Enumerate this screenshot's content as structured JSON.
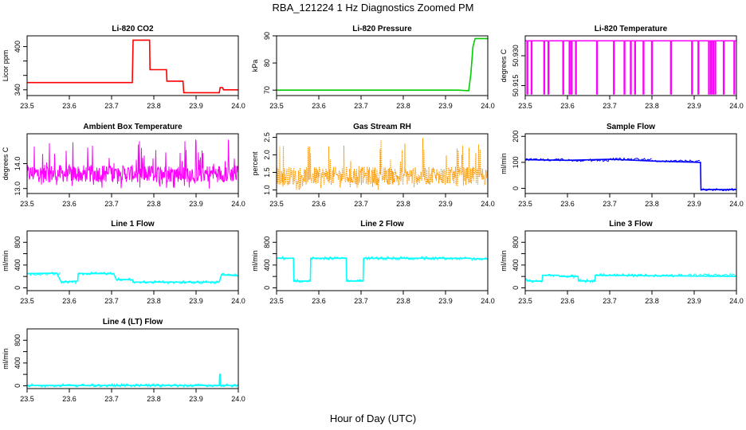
{
  "figure": {
    "title": "RBA_121224  1 Hz Diagnostics Zoomed PM",
    "xlabel": "Hour of Day (UTC)"
  },
  "chart_data": [
    {
      "type": "line",
      "title": "Li-820 CO2",
      "ylabel": "Licor ppm",
      "color": "#ff0000",
      "xlim": [
        23.5,
        24.0
      ],
      "ylim": [
        332,
        415
      ],
      "xticks": [
        "23.5",
        "23.6",
        "23.7",
        "23.8",
        "23.9",
        "24.0"
      ],
      "yticks": [
        340,
        360,
        380,
        400
      ],
      "yticklabels": [
        "340",
        "",
        "",
        "400"
      ],
      "series": [
        {
          "x": [
            23.5,
            23.749,
            23.751,
            23.79,
            23.791,
            23.83,
            23.831,
            23.869,
            23.871,
            23.955,
            23.957,
            23.963,
            23.965,
            24.0
          ],
          "values": [
            350,
            350,
            409,
            409,
            368,
            368,
            352,
            352,
            336,
            336,
            343,
            343,
            340,
            340
          ]
        }
      ]
    },
    {
      "type": "line",
      "title": "Li-820 Pressure",
      "ylabel": "kPa",
      "color": "#00cc00",
      "xlim": [
        23.5,
        24.0
      ],
      "ylim": [
        68,
        90
      ],
      "xticks": [
        "23.5",
        "23.6",
        "23.7",
        "23.8",
        "23.9",
        "24.0"
      ],
      "yticks": [
        70,
        80,
        90
      ],
      "yticklabels": [
        "70",
        "80",
        "90"
      ],
      "series": [
        {
          "x": [
            23.5,
            23.93,
            23.955,
            23.96,
            23.965,
            23.97,
            24.0
          ],
          "values": [
            70,
            70,
            69.8,
            76,
            86,
            89,
            89
          ]
        }
      ]
    },
    {
      "type": "line",
      "title": "Li-820 Temperature",
      "ylabel": "degrees C",
      "color": "#ff00ff",
      "xlim": [
        23.5,
        24.0
      ],
      "ylim": [
        50.91,
        50.94
      ],
      "xticks": [
        "23.5",
        "23.6",
        "23.7",
        "23.8",
        "23.9",
        "24.0"
      ],
      "yticks": [
        50.915,
        50.93
      ],
      "yticklabels": [
        "50.915",
        "50.930"
      ],
      "series": [
        {
          "baseline": 50.9375,
          "low": 50.9105,
          "dips": [
            23.505,
            23.515,
            23.545,
            23.555,
            23.59,
            23.605,
            23.61,
            23.62,
            23.67,
            23.71,
            23.735,
            23.75,
            23.76,
            23.78,
            23.8,
            23.845,
            23.895,
            23.91,
            23.935,
            23.94,
            23.945,
            23.95,
            23.97,
            23.995
          ]
        }
      ]
    },
    {
      "type": "line",
      "title": "Ambient Box Temperature",
      "ylabel": "degrees C",
      "color": "#ff00ff",
      "xlim": [
        23.5,
        24.0
      ],
      "ylim": [
        12.8,
        15.2
      ],
      "xticks": [
        "23.5",
        "23.6",
        "23.7",
        "23.8",
        "23.9",
        "24.0"
      ],
      "yticks": [
        13.0,
        14.0
      ],
      "yticklabels": [
        "13.0",
        "14.0"
      ],
      "series": [
        {
          "center": 13.6,
          "noise_range": [
            13.0,
            15.0
          ]
        }
      ]
    },
    {
      "type": "line",
      "title": "Gas Stream RH",
      "ylabel": "percent",
      "color": "#ff9900",
      "xlim": [
        23.5,
        24.0
      ],
      "ylim": [
        0.9,
        2.6
      ],
      "xticks": [
        "23.5",
        "23.6",
        "23.7",
        "23.8",
        "23.9",
        "24.0"
      ],
      "yticks": [
        1.0,
        1.5,
        2.0,
        2.5
      ],
      "yticklabels": [
        "1.0",
        "1.5",
        "2.0",
        "2.5"
      ],
      "series": [
        {
          "center": 1.4,
          "noise_range": [
            1.0,
            2.5
          ]
        }
      ]
    },
    {
      "type": "line",
      "title": "Sample Flow",
      "ylabel": "ml/min",
      "color": "#0000ff",
      "xlim": [
        23.5,
        24.0
      ],
      "ylim": [
        -20,
        210
      ],
      "xticks": [
        "23.5",
        "23.6",
        "23.7",
        "23.8",
        "23.9",
        "24.0"
      ],
      "yticks": [
        0,
        100,
        200
      ],
      "yticklabels": [
        "0",
        "100",
        "200"
      ],
      "series": [
        {
          "x": [
            23.5,
            23.6,
            23.7,
            23.8,
            23.915,
            23.916,
            24.0
          ],
          "values": [
            110,
            108,
            112,
            105,
            100,
            -5,
            -5
          ]
        }
      ]
    },
    {
      "type": "line",
      "title": "Line 1 Flow",
      "ylabel": "ml/min",
      "color": "#00ffff",
      "xlim": [
        23.5,
        24.0
      ],
      "ylim": [
        -50,
        1000
      ],
      "xticks": [
        "23.5",
        "23.6",
        "23.7",
        "23.8",
        "23.9",
        "24.0"
      ],
      "yticks": [
        0,
        200,
        400,
        600,
        800
      ],
      "yticklabels": [
        "0",
        "",
        "400",
        "",
        "800"
      ],
      "series": [
        {
          "x": [
            23.5,
            23.57,
            23.581,
            23.62,
            23.621,
            23.705,
            23.711,
            23.75,
            23.751,
            23.955,
            23.96,
            24.0
          ],
          "values": [
            250,
            260,
            100,
            120,
            250,
            250,
            150,
            140,
            100,
            100,
            230,
            210
          ]
        }
      ]
    },
    {
      "type": "line",
      "title": "Line 2 Flow",
      "ylabel": "ml/min",
      "color": "#00ffff",
      "xlim": [
        23.5,
        24.0
      ],
      "ylim": [
        -50,
        1000
      ],
      "xticks": [
        "23.5",
        "23.6",
        "23.7",
        "23.8",
        "23.9",
        "24.0"
      ],
      "yticks": [
        0,
        200,
        400,
        600,
        800
      ],
      "yticklabels": [
        "0",
        "",
        "400",
        "",
        "800"
      ],
      "series": [
        {
          "x": [
            23.5,
            23.54,
            23.541,
            23.58,
            23.581,
            23.665,
            23.666,
            23.705,
            23.706,
            23.96,
            23.961,
            24.0
          ],
          "values": [
            520,
            520,
            120,
            120,
            520,
            520,
            120,
            120,
            520,
            520,
            510,
            510
          ]
        }
      ]
    },
    {
      "type": "line",
      "title": "Line 3 Flow",
      "ylabel": "ml/min",
      "color": "#00ffff",
      "xlim": [
        23.5,
        24.0
      ],
      "ylim": [
        -50,
        1000
      ],
      "xticks": [
        "23.5",
        "23.6",
        "23.7",
        "23.8",
        "23.9",
        "24.0"
      ],
      "yticks": [
        0,
        200,
        400,
        600,
        800
      ],
      "yticklabels": [
        "0",
        "",
        "400",
        "",
        "800"
      ],
      "series": [
        {
          "x": [
            23.5,
            23.505,
            23.506,
            23.54,
            23.541,
            23.58,
            23.581,
            23.625,
            23.626,
            23.665,
            23.666,
            24.0
          ],
          "values": [
            170,
            120,
            120,
            120,
            220,
            220,
            200,
            200,
            120,
            120,
            220,
            200
          ]
        }
      ]
    },
    {
      "type": "line",
      "title": "Line 4 (LT) Flow",
      "ylabel": "ml/min",
      "color": "#00ffff",
      "xlim": [
        23.5,
        24.0
      ],
      "ylim": [
        -50,
        1000
      ],
      "xticks": [
        "23.5",
        "23.6",
        "23.7",
        "23.8",
        "23.9",
        "24.0"
      ],
      "yticks": [
        0,
        200,
        400,
        600,
        800
      ],
      "yticklabels": [
        "0",
        "",
        "400",
        "",
        "800"
      ],
      "series": [
        {
          "x": [
            23.5,
            23.955,
            23.956,
            23.957,
            23.958,
            24.0
          ],
          "values": [
            5,
            5,
            200,
            200,
            5,
            5
          ]
        }
      ]
    }
  ]
}
